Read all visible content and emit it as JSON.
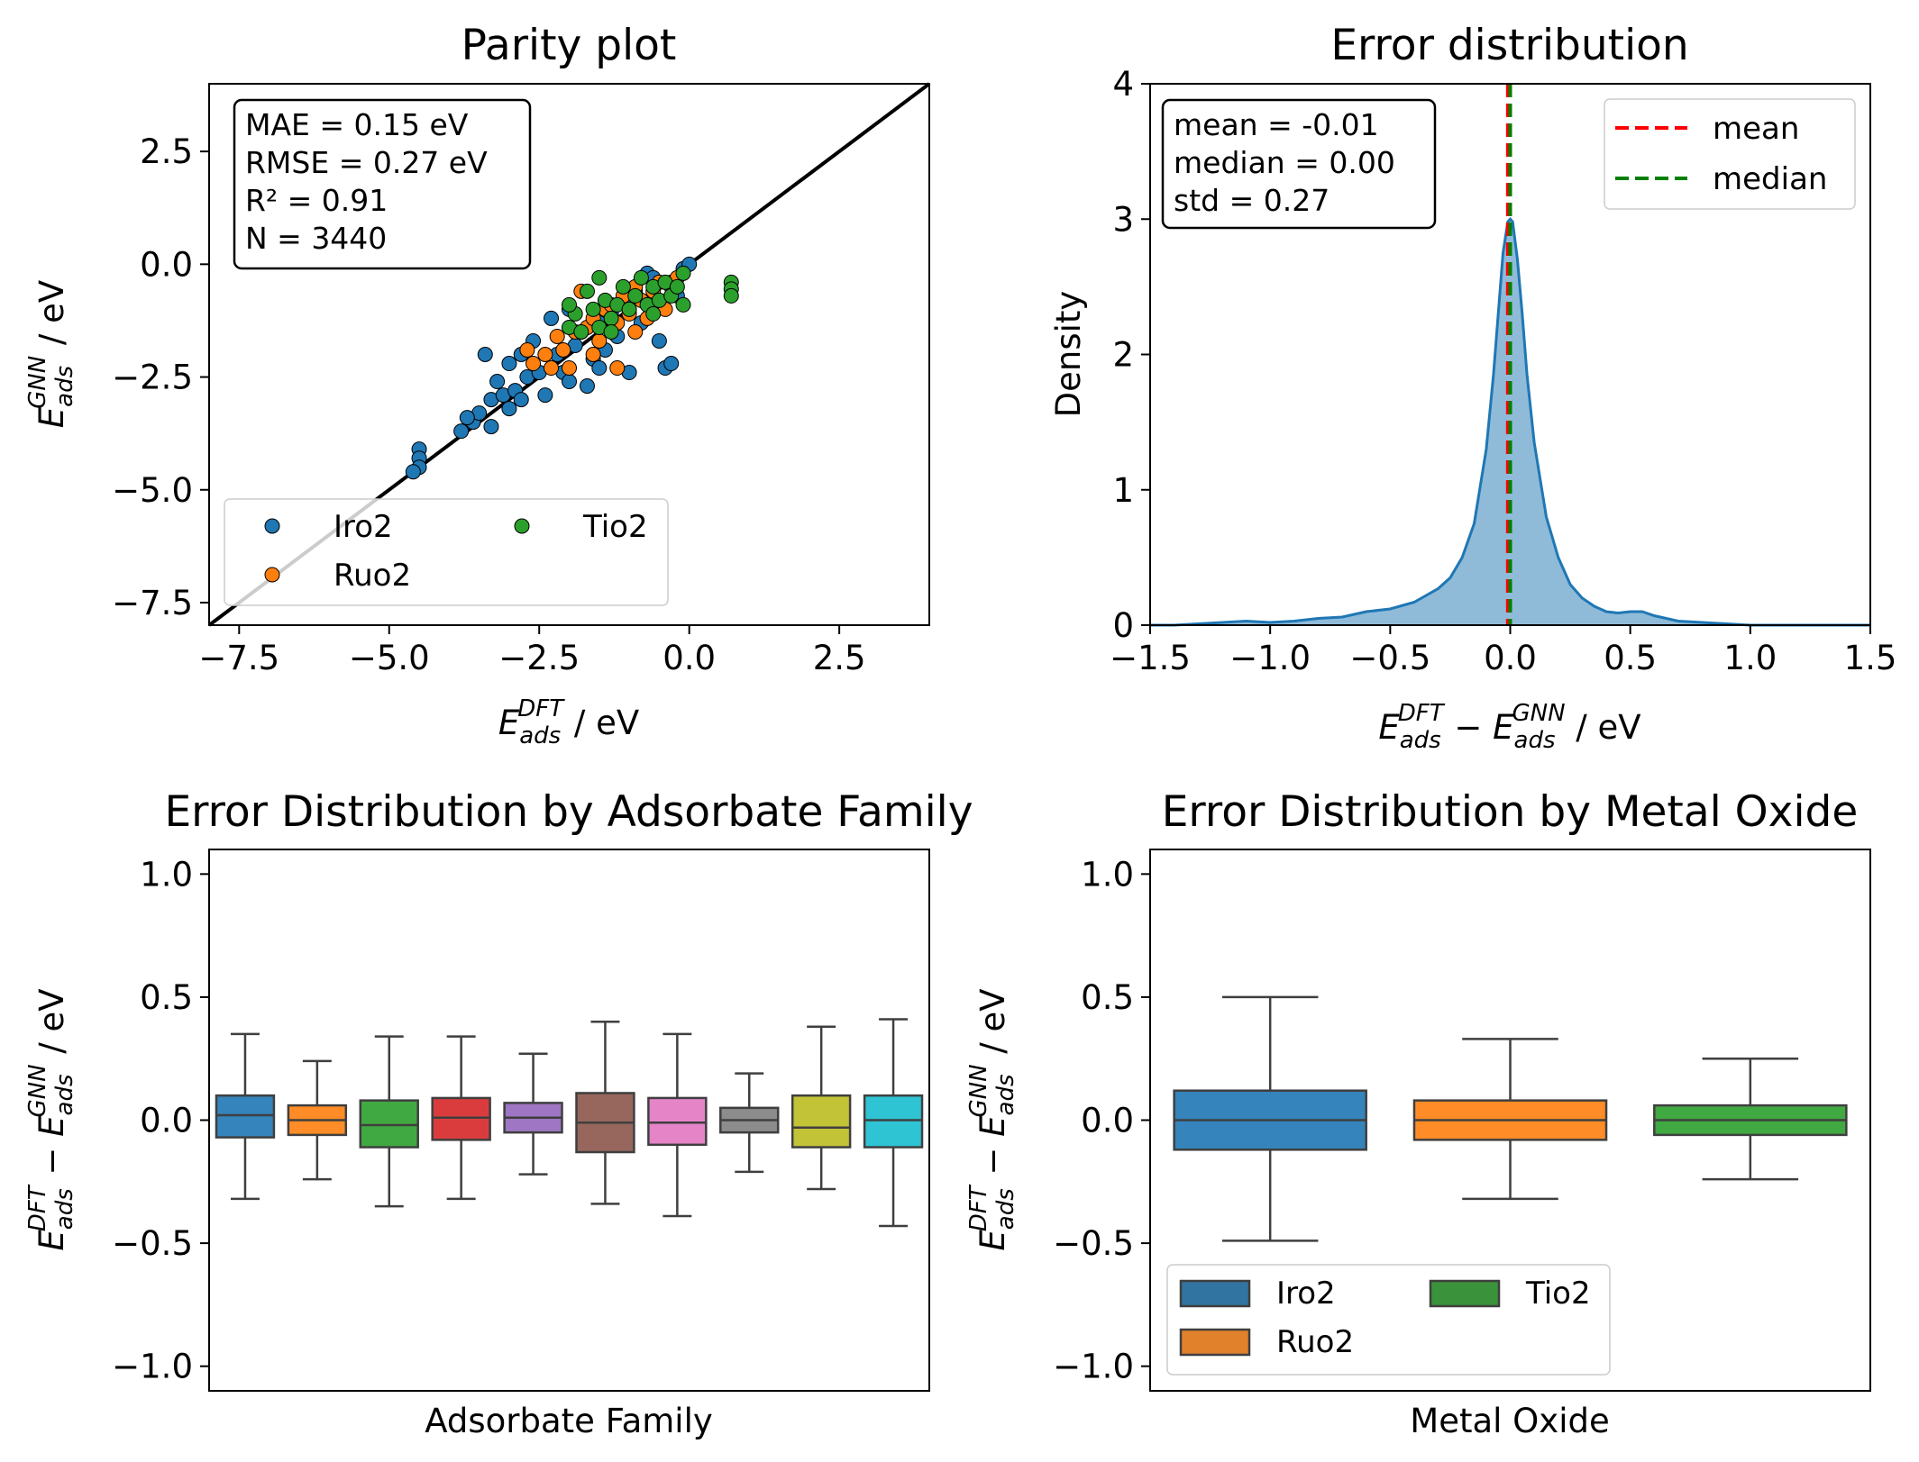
{
  "chart_data": [
    {
      "type": "scatter",
      "title": "Parity plot",
      "xlabel": {
        "base": "E",
        "sub": "ads",
        "sup": "DFT",
        "tail": " / eV"
      },
      "ylabel": {
        "base": "E",
        "sub": "ads",
        "sup": "GNN",
        "tail": " / eV"
      },
      "xlim": [
        -8.0,
        4.0
      ],
      "ylim": [
        -8.0,
        4.0
      ],
      "xticks": [
        -7.5,
        -5.0,
        -2.5,
        0.0,
        2.5
      ],
      "yticks": [
        -7.5,
        -5.0,
        -2.5,
        0.0,
        2.5
      ],
      "xtick_labels": [
        "−7.5",
        "−5.0",
        "−2.5",
        "0.0",
        "2.5"
      ],
      "ytick_labels": [
        "−7.5",
        "−5.0",
        "−2.5",
        "0.0",
        "2.5"
      ],
      "annotation": [
        "MAE = 0.15 eV",
        "RMSE = 0.27 eV",
        "R² = 0.91",
        "N = 3440"
      ],
      "reference_line": "y = x",
      "legend": {
        "position": "lower-left",
        "columns": 2
      },
      "series": [
        {
          "name": "Iro2",
          "color": "#1f77b4",
          "points": [
            [
              -4.5,
              -4.1
            ],
            [
              -4.5,
              -4.3
            ],
            [
              -4.5,
              -4.5
            ],
            [
              -4.6,
              -4.6
            ],
            [
              -3.8,
              -3.7
            ],
            [
              -3.6,
              -3.5
            ],
            [
              -3.5,
              -3.3
            ],
            [
              -3.3,
              -3.0
            ],
            [
              -3.3,
              -3.6
            ],
            [
              -3.2,
              -2.6
            ],
            [
              -3.1,
              -2.9
            ],
            [
              -3.0,
              -3.2
            ],
            [
              -3.0,
              -2.2
            ],
            [
              -2.9,
              -2.8
            ],
            [
              -2.8,
              -3.0
            ],
            [
              -2.7,
              -2.5
            ],
            [
              -2.6,
              -1.7
            ],
            [
              -2.5,
              -2.4
            ],
            [
              -2.4,
              -2.9
            ],
            [
              -2.3,
              -1.2
            ],
            [
              -2.2,
              -2.0
            ],
            [
              -2.1,
              -2.4
            ],
            [
              -2.0,
              -2.6
            ],
            [
              -1.9,
              -1.8
            ],
            [
              -1.8,
              -1.5
            ],
            [
              -1.7,
              -2.7
            ],
            [
              -1.6,
              -2.1
            ],
            [
              -1.5,
              -1.3
            ],
            [
              -1.4,
              -1.9
            ],
            [
              -1.3,
              -1.1
            ],
            [
              -1.2,
              -1.6
            ],
            [
              -1.1,
              -0.8
            ],
            [
              -1.0,
              -2.4
            ],
            [
              -0.9,
              -0.6
            ],
            [
              -0.8,
              -1.3
            ],
            [
              -0.7,
              -0.2
            ],
            [
              -0.6,
              -0.9
            ],
            [
              -0.5,
              -1.7
            ],
            [
              -0.4,
              -2.3
            ],
            [
              -0.3,
              -0.4
            ],
            [
              -0.2,
              -0.7
            ],
            [
              -0.1,
              -0.1
            ],
            [
              0.0,
              0.0
            ],
            [
              -3.4,
              -2.0
            ],
            [
              -2.8,
              -2.0
            ],
            [
              -2.0,
              -1.0
            ],
            [
              -1.5,
              -2.3
            ],
            [
              -0.6,
              -0.3
            ],
            [
              -0.3,
              -2.2
            ],
            [
              -3.7,
              -3.4
            ]
          ]
        },
        {
          "name": "Ruo2",
          "color": "#ff7f0e",
          "points": [
            [
              -2.6,
              -2.2
            ],
            [
              -2.4,
              -2.0
            ],
            [
              -2.3,
              -2.3
            ],
            [
              -2.2,
              -1.6
            ],
            [
              -2.1,
              -1.9
            ],
            [
              -2.0,
              -2.3
            ],
            [
              -1.9,
              -1.5
            ],
            [
              -1.8,
              -0.6
            ],
            [
              -1.7,
              -1.4
            ],
            [
              -1.6,
              -1.2
            ],
            [
              -1.5,
              -1.7
            ],
            [
              -1.4,
              -1.0
            ],
            [
              -1.3,
              -0.9
            ],
            [
              -1.2,
              -1.3
            ],
            [
              -1.1,
              -0.7
            ],
            [
              -1.0,
              -1.1
            ],
            [
              -0.9,
              -0.5
            ],
            [
              -0.8,
              -0.8
            ],
            [
              -0.7,
              -1.2
            ],
            [
              -0.6,
              -0.6
            ],
            [
              -0.5,
              -0.4
            ],
            [
              -0.4,
              -1.0
            ],
            [
              -0.3,
              -0.5
            ],
            [
              -0.2,
              -0.3
            ],
            [
              -1.6,
              -2.0
            ],
            [
              -1.2,
              -2.3
            ],
            [
              -2.7,
              -1.9
            ],
            [
              -0.9,
              -1.5
            ]
          ]
        },
        {
          "name": "Tio2",
          "color": "#2ca02c",
          "points": [
            [
              -2.0,
              -1.4
            ],
            [
              -1.9,
              -1.1
            ],
            [
              -1.8,
              -1.5
            ],
            [
              -1.7,
              -0.6
            ],
            [
              -1.6,
              -1.0
            ],
            [
              -1.5,
              -1.4
            ],
            [
              -1.4,
              -0.8
            ],
            [
              -1.3,
              -1.2
            ],
            [
              -1.2,
              -0.9
            ],
            [
              -1.1,
              -0.5
            ],
            [
              -1.0,
              -1.0
            ],
            [
              -0.9,
              -0.7
            ],
            [
              -0.8,
              -0.3
            ],
            [
              -0.7,
              -0.9
            ],
            [
              -0.6,
              -0.5
            ],
            [
              -0.5,
              -0.8
            ],
            [
              -0.4,
              -0.4
            ],
            [
              -0.3,
              -0.7
            ],
            [
              -0.2,
              -0.5
            ],
            [
              -0.1,
              -0.2
            ],
            [
              0.7,
              -0.4
            ],
            [
              0.7,
              -0.55
            ],
            [
              0.7,
              -0.7
            ],
            [
              -2.0,
              -0.9
            ],
            [
              -1.5,
              -0.3
            ],
            [
              -0.1,
              -0.9
            ],
            [
              -1.3,
              -1.5
            ],
            [
              -0.6,
              -1.1
            ]
          ]
        }
      ]
    },
    {
      "type": "area",
      "title": "Error distribution",
      "xlabel": {
        "a_base": "E",
        "a_sub": "ads",
        "a_sup": "DFT",
        "mid": " − ",
        "b_base": "E",
        "b_sub": "ads",
        "b_sup": "GNN",
        "tail": " / eV"
      },
      "ylabel": "Density",
      "xlim": [
        -1.5,
        1.5
      ],
      "ylim": [
        0,
        4
      ],
      "xticks": [
        -1.5,
        -1.0,
        -0.5,
        0.0,
        0.5,
        1.0,
        1.5
      ],
      "yticks": [
        0,
        1,
        2,
        3,
        4
      ],
      "xtick_labels": [
        "−1.5",
        "−1.0",
        "−0.5",
        "0.0",
        "0.5",
        "1.0",
        "1.5"
      ],
      "ytick_labels": [
        "0",
        "1",
        "2",
        "3",
        "4"
      ],
      "color": "#1f77b4",
      "kde": {
        "x": [
          -1.5,
          -1.4,
          -1.3,
          -1.2,
          -1.1,
          -1.0,
          -0.9,
          -0.8,
          -0.7,
          -0.6,
          -0.5,
          -0.4,
          -0.3,
          -0.25,
          -0.2,
          -0.15,
          -0.1,
          -0.07,
          -0.05,
          -0.03,
          -0.01,
          0.0,
          0.01,
          0.03,
          0.05,
          0.07,
          0.1,
          0.15,
          0.2,
          0.25,
          0.3,
          0.35,
          0.4,
          0.45,
          0.5,
          0.55,
          0.6,
          0.7,
          0.8,
          0.9,
          1.0,
          1.2,
          1.5
        ],
        "y": [
          0.0,
          0.0,
          0.01,
          0.02,
          0.03,
          0.02,
          0.03,
          0.05,
          0.06,
          0.1,
          0.12,
          0.17,
          0.27,
          0.35,
          0.5,
          0.75,
          1.3,
          1.85,
          2.3,
          2.75,
          2.98,
          3.0,
          2.98,
          2.7,
          2.3,
          1.85,
          1.35,
          0.8,
          0.5,
          0.3,
          0.2,
          0.14,
          0.1,
          0.09,
          0.1,
          0.1,
          0.07,
          0.03,
          0.02,
          0.01,
          0.0,
          0.0,
          0.0
        ]
      },
      "stats_text": [
        "mean = -0.01",
        "median = 0.00",
        "std = 0.27"
      ],
      "vlines": [
        {
          "name": "mean",
          "x": -0.01,
          "color": "#ff0000",
          "style": "dashed"
        },
        {
          "name": "median",
          "x": 0.0,
          "color": "#008000",
          "style": "dashed"
        }
      ],
      "legend": {
        "position": "top-right",
        "entries": [
          "mean",
          "median"
        ]
      }
    },
    {
      "type": "box",
      "title": "Error Distribution by Adsorbate Family",
      "xlabel": "Adsorbate Family",
      "ylabel": {
        "a_base": "E",
        "a_sub": "ads",
        "a_sup": "DFT",
        "mid": " − ",
        "b_base": "E",
        "b_sub": "ads",
        "b_sup": "GNN",
        "tail": " / eV"
      },
      "ylim": [
        -1.1,
        1.1
      ],
      "yticks": [
        -1.0,
        -0.5,
        0.0,
        0.5,
        1.0
      ],
      "ytick_labels": [
        "−1.0",
        "−0.5",
        "0.0",
        "0.5",
        "1.0"
      ],
      "boxes": [
        {
          "color": "#1f77b4",
          "whislo": -0.32,
          "q1": -0.07,
          "med": 0.02,
          "q3": 0.1,
          "whishi": 0.35
        },
        {
          "color": "#ff7f0e",
          "whislo": -0.24,
          "q1": -0.06,
          "med": 0.0,
          "q3": 0.06,
          "whishi": 0.24
        },
        {
          "color": "#2ca02c",
          "whislo": -0.35,
          "q1": -0.11,
          "med": -0.02,
          "q3": 0.08,
          "whishi": 0.34
        },
        {
          "color": "#d62728",
          "whislo": -0.32,
          "q1": -0.08,
          "med": 0.01,
          "q3": 0.09,
          "whishi": 0.34
        },
        {
          "color": "#9467bd",
          "whislo": -0.22,
          "q1": -0.05,
          "med": 0.01,
          "q3": 0.07,
          "whishi": 0.27
        },
        {
          "color": "#8c564b",
          "whislo": -0.34,
          "q1": -0.13,
          "med": -0.01,
          "q3": 0.11,
          "whishi": 0.4
        },
        {
          "color": "#e377c2",
          "whislo": -0.39,
          "q1": -0.1,
          "med": -0.01,
          "q3": 0.09,
          "whishi": 0.35
        },
        {
          "color": "#7f7f7f",
          "whislo": -0.21,
          "q1": -0.05,
          "med": 0.0,
          "q3": 0.05,
          "whishi": 0.19
        },
        {
          "color": "#bcbd22",
          "whislo": -0.28,
          "q1": -0.11,
          "med": -0.03,
          "q3": 0.1,
          "whishi": 0.38
        },
        {
          "color": "#17becf",
          "whislo": -0.43,
          "q1": -0.11,
          "med": 0.0,
          "q3": 0.1,
          "whishi": 0.41
        }
      ]
    },
    {
      "type": "box",
      "title": "Error Distribution by Metal Oxide",
      "xlabel": "Metal Oxide",
      "ylabel": {
        "a_base": "E",
        "a_sub": "ads",
        "a_sup": "DFT",
        "mid": " − ",
        "b_base": "E",
        "b_sub": "ads",
        "b_sup": "GNN",
        "tail": " / eV"
      },
      "ylim": [
        -1.1,
        1.1
      ],
      "yticks": [
        -1.0,
        -0.5,
        0.0,
        0.5,
        1.0
      ],
      "ytick_labels": [
        "−1.0",
        "−0.5",
        "0.0",
        "0.5",
        "1.0"
      ],
      "legend": {
        "position": "lower-left",
        "columns": 2
      },
      "boxes": [
        {
          "name": "Iro2",
          "color": "#1f77b4",
          "whislo": -0.49,
          "q1": -0.12,
          "med": 0.0,
          "q3": 0.12,
          "whishi": 0.5
        },
        {
          "name": "Ruo2",
          "color": "#ff7f0e",
          "whislo": -0.32,
          "q1": -0.08,
          "med": 0.0,
          "q3": 0.08,
          "whishi": 0.33
        },
        {
          "name": "Tio2",
          "color": "#2ca02c",
          "whislo": -0.24,
          "q1": -0.06,
          "med": 0.0,
          "q3": 0.06,
          "whishi": 0.25
        }
      ]
    }
  ]
}
